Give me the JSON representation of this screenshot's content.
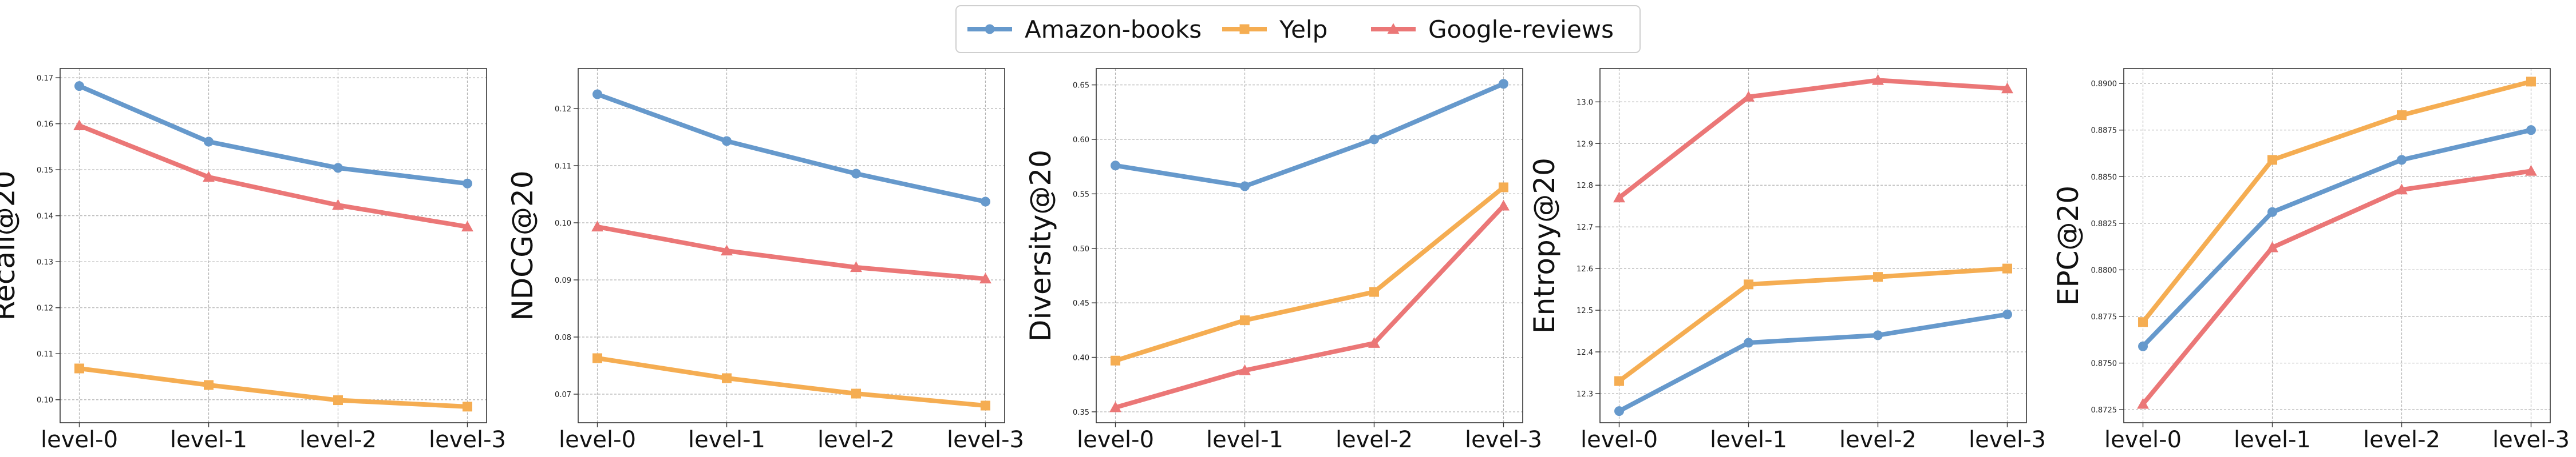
{
  "legend": {
    "placement": "top-center",
    "entries": [
      {
        "name": "Amazon-books",
        "color": "#6699cc",
        "marker": "circle"
      },
      {
        "name": "Yelp",
        "color": "#f5ad52",
        "marker": "square"
      },
      {
        "name": "Google-reviews",
        "color": "#eb7777",
        "marker": "triangle"
      }
    ]
  },
  "chart_data": [
    {
      "type": "line",
      "ylabel": "Recall@20",
      "xlabel": "",
      "categories": [
        "level-0",
        "level-1",
        "level-2",
        "level-3"
      ],
      "ylim": [
        0.095,
        0.172
      ],
      "yticks": [
        0.1,
        0.11,
        0.12,
        0.13,
        0.14,
        0.15,
        0.16,
        0.17
      ],
      "ytick_labels": [
        "0.10",
        "0.11",
        "0.12",
        "0.13",
        "0.14",
        "0.15",
        "0.16",
        "0.17"
      ],
      "grid": true,
      "series": [
        {
          "name": "Amazon-books",
          "values": [
            0.1682,
            0.1561,
            0.1504,
            0.147
          ]
        },
        {
          "name": "Yelp",
          "values": [
            0.1068,
            0.1032,
            0.0999,
            0.0985
          ]
        },
        {
          "name": "Google-reviews",
          "values": [
            0.1596,
            0.1484,
            0.1423,
            0.1376
          ]
        }
      ]
    },
    {
      "type": "line",
      "ylabel": "NDCG@20",
      "xlabel": "",
      "categories": [
        "level-0",
        "level-1",
        "level-2",
        "level-3"
      ],
      "ylim": [
        0.065,
        0.127
      ],
      "yticks": [
        0.07,
        0.08,
        0.09,
        0.1,
        0.11,
        0.12
      ],
      "ytick_labels": [
        "0.07",
        "0.08",
        "0.09",
        "0.10",
        "0.11",
        "0.12"
      ],
      "grid": true,
      "series": [
        {
          "name": "Amazon-books",
          "values": [
            0.1225,
            0.1143,
            0.1086,
            0.1037
          ]
        },
        {
          "name": "Yelp",
          "values": [
            0.0763,
            0.0728,
            0.0701,
            0.068
          ]
        },
        {
          "name": "Google-reviews",
          "values": [
            0.0993,
            0.0951,
            0.0922,
            0.0902
          ]
        }
      ]
    },
    {
      "type": "line",
      "ylabel": "Diversity@20",
      "xlabel": "",
      "categories": [
        "level-0",
        "level-1",
        "level-2",
        "level-3"
      ],
      "ylim": [
        0.34,
        0.665
      ],
      "yticks": [
        0.35,
        0.4,
        0.45,
        0.5,
        0.55,
        0.6,
        0.65
      ],
      "ytick_labels": [
        "0.35",
        "0.40",
        "0.45",
        "0.50",
        "0.55",
        "0.60",
        "0.65"
      ],
      "grid": true,
      "series": [
        {
          "name": "Amazon-books",
          "values": [
            0.576,
            0.557,
            0.6,
            0.651
          ]
        },
        {
          "name": "Yelp",
          "values": [
            0.397,
            0.434,
            0.46,
            0.556
          ]
        },
        {
          "name": "Google-reviews",
          "values": [
            0.354,
            0.388,
            0.413,
            0.539
          ]
        }
      ]
    },
    {
      "type": "line",
      "ylabel": "Entropy@20",
      "xlabel": "",
      "categories": [
        "level-0",
        "level-1",
        "level-2",
        "level-3"
      ],
      "ylim": [
        12.23,
        13.08
      ],
      "yticks": [
        12.3,
        12.4,
        12.5,
        12.6,
        12.7,
        12.8,
        12.9,
        13.0
      ],
      "ytick_labels": [
        "12.3",
        "12.4",
        "12.5",
        "12.6",
        "12.7",
        "12.8",
        "12.9",
        "13.0"
      ],
      "grid": true,
      "series": [
        {
          "name": "Amazon-books",
          "values": [
            12.258,
            12.422,
            12.44,
            12.49
          ]
        },
        {
          "name": "Yelp",
          "values": [
            12.33,
            12.562,
            12.58,
            12.6
          ]
        },
        {
          "name": "Google-reviews",
          "values": [
            12.77,
            13.012,
            13.052,
            13.032
          ]
        }
      ]
    },
    {
      "type": "line",
      "ylabel": "EPC@20",
      "xlabel": "",
      "categories": [
        "level-0",
        "level-1",
        "level-2",
        "level-3"
      ],
      "ylim": [
        0.8718,
        0.8908
      ],
      "yticks": [
        0.8725,
        0.875,
        0.8775,
        0.88,
        0.8825,
        0.885,
        0.8875,
        0.89
      ],
      "ytick_labels": [
        "0.8725",
        "0.8750",
        "0.8775",
        "0.8800",
        "0.8825",
        "0.8850",
        "0.8875",
        "0.8900"
      ],
      "grid": true,
      "series": [
        {
          "name": "Amazon-books",
          "values": [
            0.8759,
            0.8831,
            0.8859,
            0.8875
          ]
        },
        {
          "name": "Yelp",
          "values": [
            0.8772,
            0.8859,
            0.8883,
            0.8901
          ]
        },
        {
          "name": "Google-reviews",
          "values": [
            0.8728,
            0.8812,
            0.8843,
            0.8853
          ]
        }
      ]
    }
  ]
}
